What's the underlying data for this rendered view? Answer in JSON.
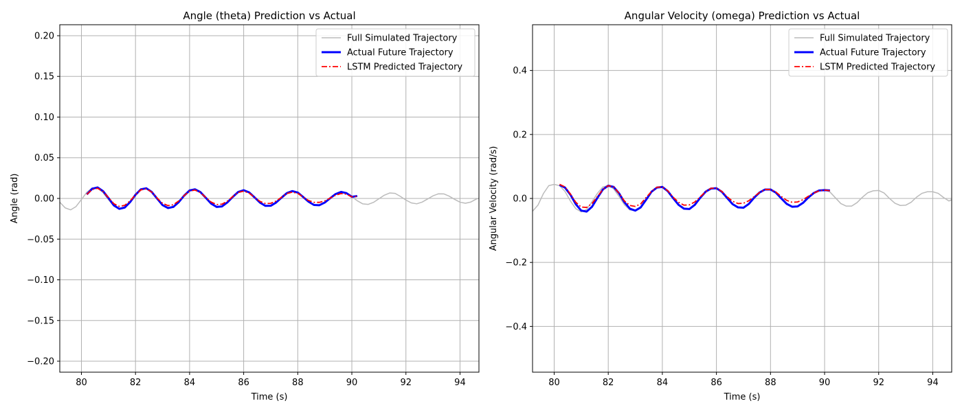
{
  "chart_data": [
    {
      "type": "line",
      "title": "Angle (theta) Prediction vs Actual",
      "xlabel": "Time (s)",
      "ylabel": "Angle (rad)",
      "xlim": [
        79.2,
        94.7
      ],
      "ylim": [
        -0.2135,
        0.2135
      ],
      "xticks": [
        80,
        82,
        84,
        86,
        88,
        90,
        92,
        94
      ],
      "yticks": [
        -0.2,
        -0.15,
        -0.1,
        -0.05,
        0.0,
        0.05,
        0.1,
        0.15,
        0.2
      ],
      "xtick_labels": [
        "80",
        "82",
        "84",
        "86",
        "88",
        "90",
        "92",
        "94"
      ],
      "ytick_labels": [
        "−0.20",
        "−0.15",
        "−0.10",
        "−0.05",
        "0.00",
        "0.05",
        "0.10",
        "0.15",
        "0.20"
      ],
      "grid": true,
      "legend": "top-right",
      "series": [
        {
          "name": "Full Simulated Trajectory",
          "color": "#bbbbbb",
          "style": "solid",
          "x": [
            79.2,
            79.4,
            79.6,
            79.8,
            80.0,
            80.2,
            80.4,
            80.6,
            80.8,
            81.0,
            81.2,
            81.4,
            81.6,
            81.8,
            82.0,
            82.2,
            82.4,
            82.6,
            82.8,
            83.0,
            83.2,
            83.4,
            83.6,
            83.8,
            84.0,
            84.2,
            84.4,
            84.6,
            84.8,
            85.0,
            85.2,
            85.4,
            85.6,
            85.8,
            86.0,
            86.2,
            86.4,
            86.6,
            86.8,
            87.0,
            87.2,
            87.4,
            87.6,
            87.8,
            88.0,
            88.2,
            88.4,
            88.6,
            88.8,
            89.0,
            89.2,
            89.4,
            89.6,
            89.8,
            90.0,
            90.2,
            90.4,
            90.6,
            90.8,
            91.0,
            91.2,
            91.4,
            91.6,
            91.8,
            92.0,
            92.2,
            92.4,
            92.6,
            92.8,
            93.0,
            93.2,
            93.4,
            93.6,
            93.8,
            94.0,
            94.2,
            94.4,
            94.6,
            94.7
          ],
          "y": [
            -0.0046,
            -0.0116,
            -0.014,
            -0.01,
            -0.0013,
            0.0076,
            0.013,
            0.0127,
            0.0071,
            -0.0016,
            -0.0095,
            -0.0129,
            -0.0105,
            -0.0036,
            0.0051,
            0.0114,
            0.0123,
            0.0077,
            -0.0001,
            -0.0078,
            -0.0117,
            -0.0103,
            -0.0045,
            0.0033,
            0.0096,
            0.0112,
            0.0077,
            0.0009,
            -0.0062,
            -0.0103,
            -0.0097,
            -0.0049,
            0.0019,
            0.0079,
            0.01,
            0.0075,
            0.0015,
            -0.0049,
            -0.009,
            -0.009,
            -0.0051,
            0.0008,
            0.0064,
            0.0089,
            0.0072,
            0.002,
            -0.0038,
            -0.0078,
            -0.0081,
            -0.005,
            0.0001,
            0.0051,
            0.0078,
            0.0067,
            0.0022,
            -0.0028,
            -0.0066,
            -0.0073,
            -0.0048,
            -0.0004,
            0.004,
            0.0067,
            0.0062,
            0.0024,
            -0.002,
            -0.0055,
            -0.0066,
            -0.0045,
            -0.0007,
            0.0032,
            0.0057,
            0.0056,
            0.0028,
            -0.0011,
            -0.0046,
            -0.0059,
            -0.0044,
            -0.0008,
            0.0003
          ]
        },
        {
          "name": "Actual Future Trajectory",
          "color": "#0000ff",
          "style": "solid",
          "x": [
            80.2,
            80.4,
            80.6,
            80.8,
            81.0,
            81.2,
            81.4,
            81.6,
            81.8,
            82.0,
            82.2,
            82.4,
            82.6,
            82.8,
            83.0,
            83.2,
            83.4,
            83.6,
            83.8,
            84.0,
            84.2,
            84.4,
            84.6,
            84.8,
            85.0,
            85.2,
            85.4,
            85.6,
            85.8,
            86.0,
            86.2,
            86.4,
            86.6,
            86.8,
            87.0,
            87.2,
            87.4,
            87.6,
            87.8,
            88.0,
            88.2,
            88.4,
            88.6,
            88.8,
            89.0,
            89.2,
            89.4,
            89.6,
            89.8,
            90.0,
            90.2
          ],
          "y": [
            0.005,
            0.012,
            0.0135,
            0.009,
            0.0005,
            -0.0085,
            -0.0128,
            -0.0112,
            -0.0045,
            0.0045,
            0.0112,
            0.0125,
            0.008,
            -0.0002,
            -0.0082,
            -0.0118,
            -0.0104,
            -0.0045,
            0.0035,
            0.0098,
            0.0112,
            0.0078,
            0.0008,
            -0.0064,
            -0.0104,
            -0.0098,
            -0.0048,
            0.002,
            0.008,
            0.0101,
            0.0075,
            0.0014,
            -0.005,
            -0.0091,
            -0.009,
            -0.005,
            0.001,
            0.0066,
            0.009,
            0.0072,
            0.0018,
            -0.004,
            -0.008,
            -0.0083,
            -0.005,
            0.0003,
            0.0054,
            0.008,
            0.0066,
            0.002,
            0.003
          ]
        },
        {
          "name": "LSTM Predicted Trajectory",
          "color": "#ff0000",
          "style": "dashdot",
          "x": [
            80.2,
            80.4,
            80.6,
            80.8,
            81.0,
            81.2,
            81.4,
            81.6,
            81.8,
            82.0,
            82.2,
            82.4,
            82.6,
            82.8,
            83.0,
            83.2,
            83.4,
            83.6,
            83.8,
            84.0,
            84.2,
            84.4,
            84.6,
            84.8,
            85.0,
            85.2,
            85.4,
            85.6,
            85.8,
            86.0,
            86.2,
            86.4,
            86.6,
            86.8,
            87.0,
            87.2,
            87.4,
            87.6,
            87.8,
            88.0,
            88.2,
            88.4,
            88.6,
            88.8,
            89.0,
            89.2,
            89.4,
            89.6,
            89.8,
            90.0,
            90.2
          ],
          "y": [
            0.005,
            0.011,
            0.0125,
            0.0085,
            0.001,
            -0.0065,
            -0.0098,
            -0.0085,
            -0.003,
            0.0045,
            0.0105,
            0.0118,
            0.0078,
            0.0005,
            -0.006,
            -0.0088,
            -0.0078,
            -0.003,
            0.0035,
            0.009,
            0.0103,
            0.0072,
            0.0012,
            -0.0045,
            -0.0075,
            -0.007,
            -0.0032,
            0.0025,
            0.0074,
            0.009,
            0.0065,
            0.0015,
            -0.0035,
            -0.0062,
            -0.006,
            -0.0032,
            0.0015,
            0.006,
            0.0078,
            0.0062,
            0.0018,
            -0.0025,
            -0.0048,
            -0.0048,
            -0.003,
            0.0005,
            0.004,
            0.006,
            0.0052,
            0.002,
            0.0025
          ]
        }
      ]
    },
    {
      "type": "line",
      "title": "Angular Velocity (omega) Prediction vs Actual",
      "xlabel": "Time (s)",
      "ylabel": "Angular Velocity (rad/s)",
      "xlim": [
        79.2,
        94.7
      ],
      "ylim": [
        -0.543,
        0.543
      ],
      "xticks": [
        80,
        82,
        84,
        86,
        88,
        90,
        92,
        94
      ],
      "yticks": [
        -0.4,
        -0.2,
        0.0,
        0.2,
        0.4
      ],
      "xtick_labels": [
        "80",
        "82",
        "84",
        "86",
        "88",
        "90",
        "92",
        "94"
      ],
      "ytick_labels": [
        "−0.4",
        "−0.2",
        "0.0",
        "0.2",
        "0.4"
      ],
      "grid": true,
      "legend": "top-right",
      "series": [
        {
          "name": "Full Simulated Trajectory",
          "color": "#bbbbbb",
          "style": "solid",
          "x": [
            79.2,
            79.4,
            79.6,
            79.8,
            80.0,
            80.2,
            80.4,
            80.6,
            80.8,
            81.0,
            81.2,
            81.4,
            81.6,
            81.8,
            82.0,
            82.2,
            82.4,
            82.6,
            82.8,
            83.0,
            83.2,
            83.4,
            83.6,
            83.8,
            84.0,
            84.2,
            84.4,
            84.6,
            84.8,
            85.0,
            85.2,
            85.4,
            85.6,
            85.8,
            86.0,
            86.2,
            86.4,
            86.6,
            86.8,
            87.0,
            87.2,
            87.4,
            87.6,
            87.8,
            88.0,
            88.2,
            88.4,
            88.6,
            88.8,
            89.0,
            89.2,
            89.4,
            89.6,
            89.8,
            90.0,
            90.2,
            90.4,
            90.6,
            90.8,
            91.0,
            91.2,
            91.4,
            91.6,
            91.8,
            92.0,
            92.2,
            92.4,
            92.6,
            92.8,
            93.0,
            93.2,
            93.4,
            93.6,
            93.8,
            94.0,
            94.2,
            94.4,
            94.6,
            94.7
          ],
          "y": [
            -0.04,
            -0.021,
            0.015,
            0.04,
            0.044,
            0.04,
            0.022,
            -0.008,
            -0.032,
            -0.042,
            -0.034,
            -0.01,
            0.016,
            0.036,
            0.04,
            0.03,
            0.006,
            -0.02,
            -0.036,
            -0.038,
            -0.026,
            -0.002,
            0.021,
            0.035,
            0.036,
            0.024,
            0.0,
            -0.021,
            -0.033,
            -0.033,
            -0.02,
            0.002,
            0.021,
            0.032,
            0.032,
            0.021,
            0.001,
            -0.019,
            -0.029,
            -0.029,
            -0.017,
            0.003,
            0.019,
            0.028,
            0.028,
            0.018,
            0.0,
            -0.017,
            -0.026,
            -0.025,
            -0.015,
            0.003,
            0.018,
            0.026,
            0.026,
            0.02,
            0.002,
            -0.016,
            -0.024,
            -0.024,
            -0.013,
            0.004,
            0.018,
            0.024,
            0.025,
            0.017,
            0.0,
            -0.015,
            -0.022,
            -0.021,
            -0.012,
            0.004,
            0.016,
            0.021,
            0.021,
            0.016,
            0.003,
            -0.008,
            -0.004
          ]
        },
        {
          "name": "Actual Future Trajectory",
          "color": "#0000ff",
          "style": "solid",
          "x": [
            80.2,
            80.4,
            80.6,
            80.8,
            81.0,
            81.2,
            81.4,
            81.6,
            81.8,
            82.0,
            82.2,
            82.4,
            82.6,
            82.8,
            83.0,
            83.2,
            83.4,
            83.6,
            83.8,
            84.0,
            84.2,
            84.4,
            84.6,
            84.8,
            85.0,
            85.2,
            85.4,
            85.6,
            85.8,
            86.0,
            86.2,
            86.4,
            86.6,
            86.8,
            87.0,
            87.2,
            87.4,
            87.6,
            87.8,
            88.0,
            88.2,
            88.4,
            88.6,
            88.8,
            89.0,
            89.2,
            89.4,
            89.6,
            89.8,
            90.0,
            90.2
          ],
          "y": [
            0.042,
            0.034,
            0.012,
            -0.018,
            -0.038,
            -0.041,
            -0.026,
            0.002,
            0.028,
            0.04,
            0.036,
            0.016,
            -0.012,
            -0.032,
            -0.038,
            -0.028,
            -0.004,
            0.021,
            0.034,
            0.036,
            0.023,
            0.001,
            -0.02,
            -0.032,
            -0.033,
            -0.02,
            0.002,
            0.021,
            0.031,
            0.032,
            0.021,
            0.001,
            -0.018,
            -0.028,
            -0.029,
            -0.017,
            0.003,
            0.019,
            0.028,
            0.028,
            0.018,
            0.0,
            -0.017,
            -0.026,
            -0.025,
            -0.014,
            0.003,
            0.017,
            0.025,
            0.026,
            0.025
          ]
        },
        {
          "name": "LSTM Predicted Trajectory",
          "color": "#ff0000",
          "style": "dashdot",
          "x": [
            80.2,
            80.4,
            80.6,
            80.8,
            81.0,
            81.2,
            81.4,
            81.6,
            81.8,
            82.0,
            82.2,
            82.4,
            82.6,
            82.8,
            83.0,
            83.2,
            83.4,
            83.6,
            83.8,
            84.0,
            84.2,
            84.4,
            84.6,
            84.8,
            85.0,
            85.2,
            85.4,
            85.6,
            85.8,
            86.0,
            86.2,
            86.4,
            86.6,
            86.8,
            87.0,
            87.2,
            87.4,
            87.6,
            87.8,
            88.0,
            88.2,
            88.4,
            88.6,
            88.8,
            89.0,
            89.2,
            89.4,
            89.6,
            89.8,
            90.0,
            90.2
          ],
          "y": [
            0.044,
            0.036,
            0.014,
            -0.012,
            -0.027,
            -0.028,
            -0.016,
            0.006,
            0.028,
            0.04,
            0.036,
            0.016,
            -0.008,
            -0.022,
            -0.025,
            -0.017,
            0.003,
            0.022,
            0.035,
            0.036,
            0.024,
            0.004,
            -0.012,
            -0.021,
            -0.02,
            -0.011,
            0.005,
            0.021,
            0.032,
            0.032,
            0.022,
            0.005,
            -0.009,
            -0.016,
            -0.015,
            -0.007,
            0.006,
            0.019,
            0.028,
            0.028,
            0.02,
            0.006,
            -0.006,
            -0.012,
            -0.011,
            -0.004,
            0.007,
            0.017,
            0.024,
            0.026,
            0.024
          ]
        }
      ]
    }
  ]
}
